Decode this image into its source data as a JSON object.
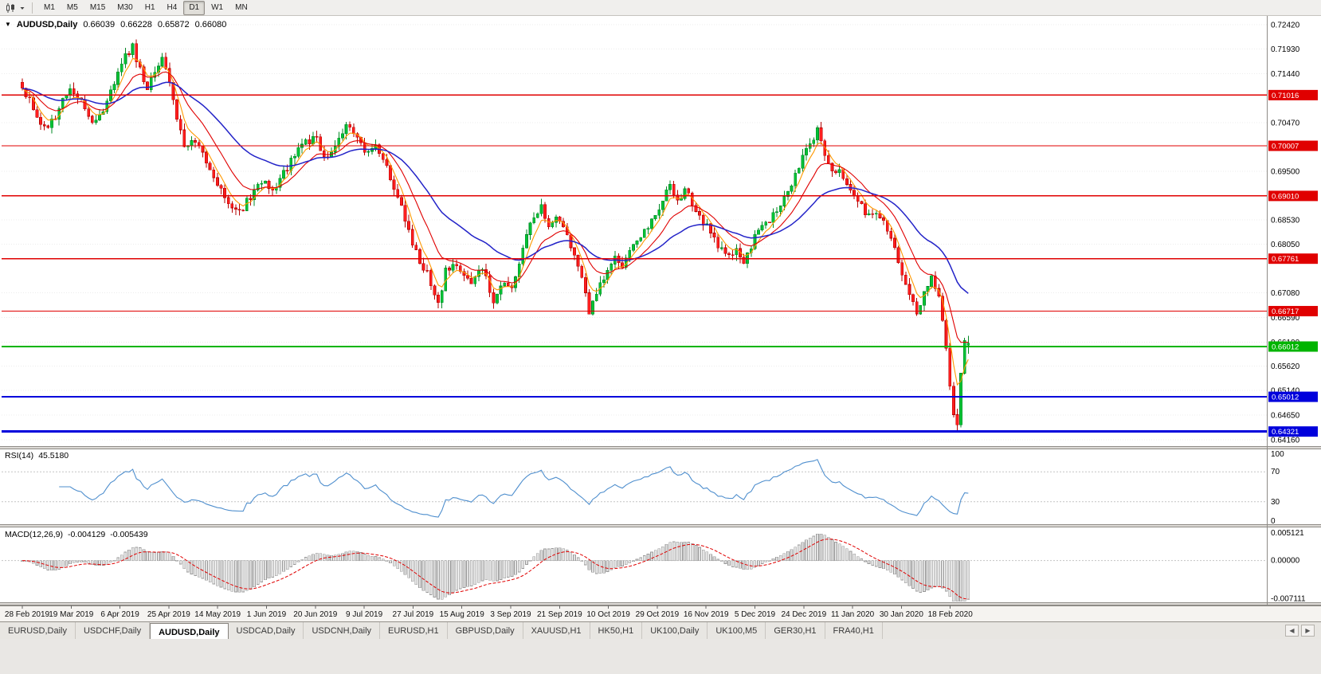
{
  "toolbar": {
    "chart_type_icon": "candlestick-chart",
    "dropdown_icon": "chevron-down",
    "timeframes": [
      "M1",
      "M5",
      "M15",
      "M30",
      "H1",
      "H4",
      "D1",
      "W1",
      "MN"
    ],
    "active_timeframe": "D1"
  },
  "chart_header": {
    "collapse_icon": "▼",
    "symbol": "AUDUSD,Daily",
    "open": "0.66039",
    "high": "0.66228",
    "low": "0.65872",
    "close": "0.66080"
  },
  "tabs": {
    "items": [
      "EURUSD,Daily",
      "USDCHF,Daily",
      "AUDUSD,Daily",
      "USDCAD,Daily",
      "USDCNH,Daily",
      "EURUSD,H1",
      "GBPUSD,Daily",
      "XAUUSD,H1",
      "HK50,H1",
      "UK100,Daily",
      "UK100,M5",
      "GER30,H1",
      "FRA40,H1"
    ],
    "active": "AUDUSD,Daily",
    "scroll_left_icon": "◀",
    "scroll_right_icon": "▶"
  },
  "chart_data": {
    "type": "candlestick",
    "symbol": "AUDUSD",
    "period": "Daily",
    "ohlc_readout": {
      "open": 0.66039,
      "high": 0.66228,
      "low": 0.65872,
      "close": 0.6608
    },
    "x_labels": [
      "28 Feb 2019",
      "19 Mar 2019",
      "6 Apr 2019",
      "25 Apr 2019",
      "14 May 2019",
      "1 Jun 2019",
      "20 Jun 2019",
      "9 Jul 2019",
      "27 Jul 2019",
      "15 Aug 2019",
      "3 Sep 2019",
      "21 Sep 2019",
      "10 Oct 2019",
      "29 Oct 2019",
      "16 Nov 2019",
      "5 Dec 2019",
      "24 Dec 2019",
      "11 Jan 2020",
      "30 Jan 2020",
      "18 Feb 2020"
    ],
    "price_axis_labels": [
      "0.72420",
      "0.71930",
      "0.71440",
      "0.70470",
      "0.69500",
      "0.68530",
      "0.68050",
      "0.67080",
      "0.66590",
      "0.66100",
      "0.65620",
      "0.65140",
      "0.64650",
      "0.64160"
    ],
    "price_range": {
      "min": 0.6403,
      "max": 0.7256
    },
    "levels": [
      {
        "price": 0.71016,
        "label": "0.71016",
        "color": "#e00000",
        "width": 1.4
      },
      {
        "price": 0.70007,
        "label": "0.70007",
        "color": "#e00000",
        "width": 1.4
      },
      {
        "price": 0.6901,
        "label": "0.69010",
        "color": "#e00000",
        "width": 1.4
      },
      {
        "price": 0.67761,
        "label": "0.67761",
        "color": "#e00000",
        "width": 1.4
      },
      {
        "price": 0.66717,
        "label": "0.66717",
        "color": "#e00000",
        "width": 1.4
      },
      {
        "price": 0.66012,
        "label": "0.66012",
        "color": "#00b400",
        "width": 1.6
      },
      {
        "price": 0.65012,
        "label": "0.65012",
        "color": "#0000dc",
        "width": 2
      },
      {
        "price": 0.64321,
        "label": "0.64321",
        "color": "#0000dc",
        "width": 3
      }
    ],
    "n_candles": 258,
    "close_anchors": [
      [
        0,
        0.7115
      ],
      [
        3,
        0.708
      ],
      [
        6,
        0.7035
      ],
      [
        9,
        0.706
      ],
      [
        13,
        0.712
      ],
      [
        16,
        0.7085
      ],
      [
        19,
        0.705
      ],
      [
        22,
        0.7075
      ],
      [
        25,
        0.713
      ],
      [
        28,
        0.7178
      ],
      [
        30,
        0.7198
      ],
      [
        32,
        0.715
      ],
      [
        34,
        0.711
      ],
      [
        36,
        0.715
      ],
      [
        38,
        0.717
      ],
      [
        40,
        0.7125
      ],
      [
        42,
        0.706
      ],
      [
        44,
        0.7
      ],
      [
        47,
        0.7012
      ],
      [
        50,
        0.6972
      ],
      [
        53,
        0.6928
      ],
      [
        56,
        0.689
      ],
      [
        59,
        0.6868
      ],
      [
        62,
        0.69
      ],
      [
        65,
        0.6932
      ],
      [
        68,
        0.691
      ],
      [
        71,
        0.6945
      ],
      [
        74,
        0.698
      ],
      [
        77,
        0.7008
      ],
      [
        80,
        0.7015
      ],
      [
        82,
        0.6972
      ],
      [
        85,
        0.7005
      ],
      [
        88,
        0.704
      ],
      [
        90,
        0.703
      ],
      [
        93,
        0.699
      ],
      [
        96,
        0.7005
      ],
      [
        99,
        0.6955
      ],
      [
        102,
        0.6898
      ],
      [
        104,
        0.6855
      ],
      [
        106,
        0.6802
      ],
      [
        108,
        0.677
      ],
      [
        110,
        0.6748
      ],
      [
        112,
        0.6702
      ],
      [
        113,
        0.6685
      ],
      [
        115,
        0.675
      ],
      [
        117,
        0.677
      ],
      [
        119,
        0.6755
      ],
      [
        122,
        0.6725
      ],
      [
        125,
        0.6758
      ],
      [
        128,
        0.6692
      ],
      [
        131,
        0.6732
      ],
      [
        133,
        0.672
      ],
      [
        136,
        0.6795
      ],
      [
        139,
        0.6862
      ],
      [
        141,
        0.688
      ],
      [
        143,
        0.6845
      ],
      [
        146,
        0.6858
      ],
      [
        148,
        0.6822
      ],
      [
        150,
        0.6785
      ],
      [
        152,
        0.6738
      ],
      [
        154,
        0.6672
      ],
      [
        156,
        0.671
      ],
      [
        159,
        0.6752
      ],
      [
        161,
        0.6775
      ],
      [
        163,
        0.6758
      ],
      [
        165,
        0.6792
      ],
      [
        168,
        0.6822
      ],
      [
        171,
        0.6855
      ],
      [
        174,
        0.6888
      ],
      [
        176,
        0.6925
      ],
      [
        178,
        0.6895
      ],
      [
        180,
        0.6912
      ],
      [
        183,
        0.6872
      ],
      [
        186,
        0.6838
      ],
      [
        189,
        0.6805
      ],
      [
        192,
        0.6782
      ],
      [
        194,
        0.6795
      ],
      [
        196,
        0.6768
      ],
      [
        199,
        0.6818
      ],
      [
        202,
        0.6845
      ],
      [
        205,
        0.6872
      ],
      [
        208,
        0.6905
      ],
      [
        210,
        0.6942
      ],
      [
        212,
        0.6975
      ],
      [
        214,
        0.7005
      ],
      [
        216,
        0.7032
      ],
      [
        218,
        0.6988
      ],
      [
        220,
        0.6945
      ],
      [
        222,
        0.6958
      ],
      [
        225,
        0.6908
      ],
      [
        228,
        0.6882
      ],
      [
        230,
        0.6858
      ],
      [
        232,
        0.687
      ],
      [
        234,
        0.6845
      ],
      [
        236,
        0.6815
      ],
      [
        238,
        0.6772
      ],
      [
        240,
        0.6722
      ],
      [
        242,
        0.6688
      ],
      [
        243,
        0.6668
      ],
      [
        245,
        0.6705
      ],
      [
        247,
        0.6738
      ],
      [
        249,
        0.67
      ],
      [
        250,
        0.666
      ],
      [
        251,
        0.6595
      ],
      [
        252,
        0.652
      ],
      [
        253,
        0.6462
      ],
      [
        254,
        0.6438
      ],
      [
        255,
        0.6545
      ],
      [
        256,
        0.6618
      ],
      [
        257,
        0.6608
      ]
    ],
    "wick_overrides": {
      "30": {
        "high": 0.7206
      },
      "113": {
        "low": 0.6677
      },
      "141": {
        "high": 0.6895
      },
      "154": {
        "low": 0.667
      },
      "176": {
        "high": 0.6932
      },
      "216": {
        "high": 0.7041
      },
      "243": {
        "low": 0.6662
      },
      "254": {
        "low": 0.6434
      }
    },
    "last_candle": {
      "open": 0.66039,
      "high": 0.66228,
      "low": 0.65872,
      "close": 0.6608
    },
    "candle_up_color": "#00c335",
    "candle_down_color": "#ff1e1e",
    "moving_averages": [
      {
        "period": 5,
        "color": "#ff9900"
      },
      {
        "period": 13,
        "color": "#e00000"
      },
      {
        "period": 34,
        "color": "#2323c8"
      }
    ],
    "rsi": {
      "name": "RSI(14)",
      "value": "45.5180",
      "line_color": "#4f8fce",
      "dashed_levels": [
        70,
        30
      ],
      "axis_labels": [
        {
          "text": "100",
          "value": 100
        },
        {
          "text": "70",
          "value": 70
        },
        {
          "text": "30",
          "value": 30
        },
        {
          "text": "0",
          "value": 0
        }
      ],
      "range": [
        0,
        100
      ]
    },
    "macd": {
      "name": "MACD(12,26,9)",
      "value_main": "-0.004129",
      "value_signal": "-0.005439",
      "histogram_color": "#e2e2e2",
      "histogram_stroke": "#9a9a9a",
      "signal_color": "#e00000",
      "axis_labels": [
        {
          "text": "0.005121",
          "value": 0.005121
        },
        {
          "text": "0.00000",
          "value": 0
        },
        {
          "text": "-0.007111",
          "value": -0.007111
        }
      ],
      "range": [
        -0.0078,
        0.0062
      ]
    }
  }
}
